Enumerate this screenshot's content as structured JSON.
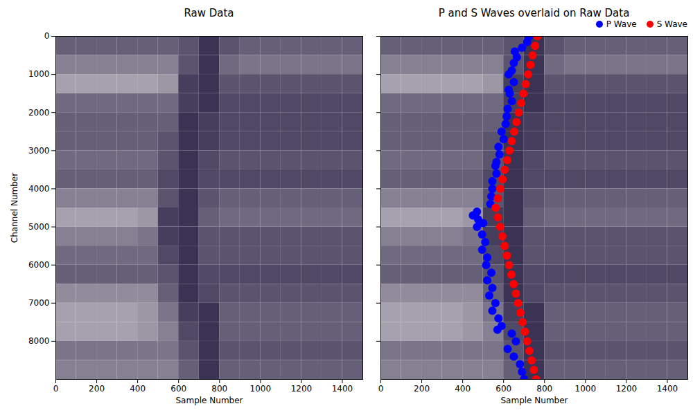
{
  "raw_data": {
    "sample_bins": [
      0,
      100,
      200,
      300,
      400,
      500,
      600,
      700,
      800,
      900,
      1000,
      1100,
      1200,
      1300,
      1400,
      1500
    ],
    "channel_bins": [
      0,
      500,
      1000,
      1500,
      2000,
      2500,
      3000,
      3500,
      4000,
      4500,
      5000,
      5500,
      6000,
      6500,
      7000,
      7500,
      8000,
      8500,
      9000
    ],
    "colors": [
      "#1a1238",
      "#f2eeee"
    ],
    "color_range": [
      0,
      1
    ],
    "values": [
      [
        0.35,
        0.35,
        0.35,
        0.35,
        0.35,
        0.35,
        0.3,
        0.15,
        0.3,
        0.35,
        0.35,
        0.35,
        0.35,
        0.35,
        0.35
      ],
      [
        0.5,
        0.5,
        0.5,
        0.5,
        0.5,
        0.5,
        0.3,
        0.15,
        0.4,
        0.45,
        0.45,
        0.45,
        0.45,
        0.45,
        0.45
      ],
      [
        0.65,
        0.65,
        0.65,
        0.65,
        0.65,
        0.6,
        0.2,
        0.15,
        0.3,
        0.3,
        0.3,
        0.3,
        0.3,
        0.3,
        0.3
      ],
      [
        0.4,
        0.4,
        0.4,
        0.4,
        0.4,
        0.4,
        0.2,
        0.15,
        0.25,
        0.25,
        0.25,
        0.25,
        0.25,
        0.25,
        0.25
      ],
      [
        0.35,
        0.35,
        0.35,
        0.35,
        0.35,
        0.35,
        0.15,
        0.2,
        0.25,
        0.25,
        0.25,
        0.25,
        0.25,
        0.25,
        0.25
      ],
      [
        0.35,
        0.35,
        0.35,
        0.35,
        0.35,
        0.3,
        0.15,
        0.2,
        0.25,
        0.25,
        0.25,
        0.25,
        0.25,
        0.25,
        0.25
      ],
      [
        0.4,
        0.4,
        0.4,
        0.4,
        0.4,
        0.3,
        0.15,
        0.25,
        0.3,
        0.3,
        0.3,
        0.3,
        0.3,
        0.3,
        0.3
      ],
      [
        0.35,
        0.35,
        0.35,
        0.35,
        0.35,
        0.25,
        0.15,
        0.25,
        0.25,
        0.25,
        0.25,
        0.25,
        0.25,
        0.25,
        0.25
      ],
      [
        0.5,
        0.5,
        0.5,
        0.5,
        0.5,
        0.3,
        0.15,
        0.3,
        0.35,
        0.35,
        0.35,
        0.35,
        0.35,
        0.35,
        0.35
      ],
      [
        0.65,
        0.65,
        0.65,
        0.65,
        0.6,
        0.2,
        0.15,
        0.35,
        0.4,
        0.4,
        0.4,
        0.4,
        0.4,
        0.4,
        0.4
      ],
      [
        0.5,
        0.5,
        0.5,
        0.5,
        0.45,
        0.2,
        0.15,
        0.3,
        0.3,
        0.3,
        0.3,
        0.3,
        0.3,
        0.3,
        0.3
      ],
      [
        0.4,
        0.4,
        0.4,
        0.4,
        0.4,
        0.25,
        0.15,
        0.3,
        0.3,
        0.3,
        0.3,
        0.3,
        0.3,
        0.3,
        0.3
      ],
      [
        0.35,
        0.35,
        0.35,
        0.35,
        0.35,
        0.3,
        0.15,
        0.25,
        0.25,
        0.25,
        0.25,
        0.25,
        0.25,
        0.25,
        0.25
      ],
      [
        0.55,
        0.55,
        0.55,
        0.55,
        0.55,
        0.35,
        0.15,
        0.25,
        0.3,
        0.3,
        0.3,
        0.3,
        0.3,
        0.3,
        0.3
      ],
      [
        0.65,
        0.65,
        0.65,
        0.65,
        0.6,
        0.45,
        0.2,
        0.15,
        0.35,
        0.35,
        0.35,
        0.35,
        0.35,
        0.35,
        0.35
      ],
      [
        0.65,
        0.65,
        0.65,
        0.65,
        0.6,
        0.5,
        0.25,
        0.15,
        0.35,
        0.35,
        0.35,
        0.35,
        0.35,
        0.35,
        0.35
      ],
      [
        0.45,
        0.45,
        0.45,
        0.45,
        0.45,
        0.45,
        0.3,
        0.15,
        0.3,
        0.3,
        0.3,
        0.3,
        0.3,
        0.3,
        0.3
      ],
      [
        0.5,
        0.5,
        0.5,
        0.5,
        0.5,
        0.5,
        0.35,
        0.15,
        0.35,
        0.35,
        0.35,
        0.35,
        0.35,
        0.35,
        0.35
      ]
    ]
  },
  "chart_data": [
    {
      "type": "heatmap",
      "title": "Raw Data",
      "xlabel": "Sample Number",
      "ylabel": "Channel Number",
      "xlim": [
        0,
        1500
      ],
      "xticks": [
        0,
        200,
        400,
        600,
        800,
        1000,
        1200,
        1400
      ],
      "ylim": [
        9000,
        0
      ],
      "yticks": [
        0,
        1000,
        2000,
        3000,
        4000,
        5000,
        6000,
        7000,
        8000
      ]
    },
    {
      "type": "scatter",
      "title": "P and S Waves overlaid on Raw Data",
      "xlabel": "Sample Number",
      "xlim": [
        0,
        1500
      ],
      "xticks": [
        0,
        200,
        400,
        600,
        800,
        1000,
        1200,
        1400
      ],
      "ylim": [
        9000,
        0
      ],
      "yticks": [
        0,
        1000,
        2000,
        3000,
        4000,
        5000,
        6000,
        7000,
        8000
      ],
      "tick_labels": "x",
      "legend": "upper right",
      "series": [
        {
          "name": "P Wave",
          "color": "blue",
          "marker": "circle",
          "x": [
            725,
            715,
            690,
            655,
            665,
            650,
            640,
            625,
            650,
            625,
            630,
            640,
            620,
            615,
            610,
            590,
            600,
            575,
            580,
            565,
            560,
            565,
            545,
            545,
            540,
            535,
            470,
            450,
            475,
            500,
            470,
            495,
            510,
            495,
            520,
            515,
            540,
            520,
            545,
            530,
            560,
            545,
            575,
            590,
            570,
            640,
            660,
            620,
            650,
            680,
            690,
            700
          ],
          "y": [
            0,
            150,
            300,
            400,
            550,
            700,
            900,
            1000,
            1200,
            1400,
            1500,
            1700,
            1900,
            2100,
            2300,
            2500,
            2700,
            2900,
            3100,
            3300,
            3400,
            3600,
            3800,
            4000,
            4200,
            4400,
            4600,
            4700,
            4800,
            4900,
            5000,
            5200,
            5400,
            5600,
            5800,
            6000,
            6200,
            6400,
            6600,
            6800,
            7000,
            7200,
            7400,
            7600,
            7700,
            7800,
            8000,
            8200,
            8400,
            8600,
            8800,
            9000
          ]
        },
        {
          "name": "S Wave",
          "color": "red",
          "marker": "circle",
          "x": [
            765,
            754,
            742,
            731,
            720,
            708,
            697,
            686,
            674,
            663,
            652,
            640,
            629,
            618,
            606,
            595,
            584,
            572,
            561,
            572,
            583,
            594,
            605,
            616,
            627,
            638,
            649,
            660,
            671,
            682,
            693,
            704,
            715,
            726,
            737,
            748,
            759
          ],
          "y": [
            0,
            250,
            500,
            750,
            1000,
            1250,
            1500,
            1750,
            2000,
            2250,
            2500,
            2750,
            3000,
            3250,
            3500,
            3750,
            4000,
            4250,
            4500,
            4750,
            5000,
            5250,
            5500,
            5750,
            6000,
            6250,
            6500,
            6750,
            7000,
            7250,
            7500,
            7750,
            8000,
            8250,
            8500,
            8750,
            9000
          ]
        }
      ]
    }
  ]
}
